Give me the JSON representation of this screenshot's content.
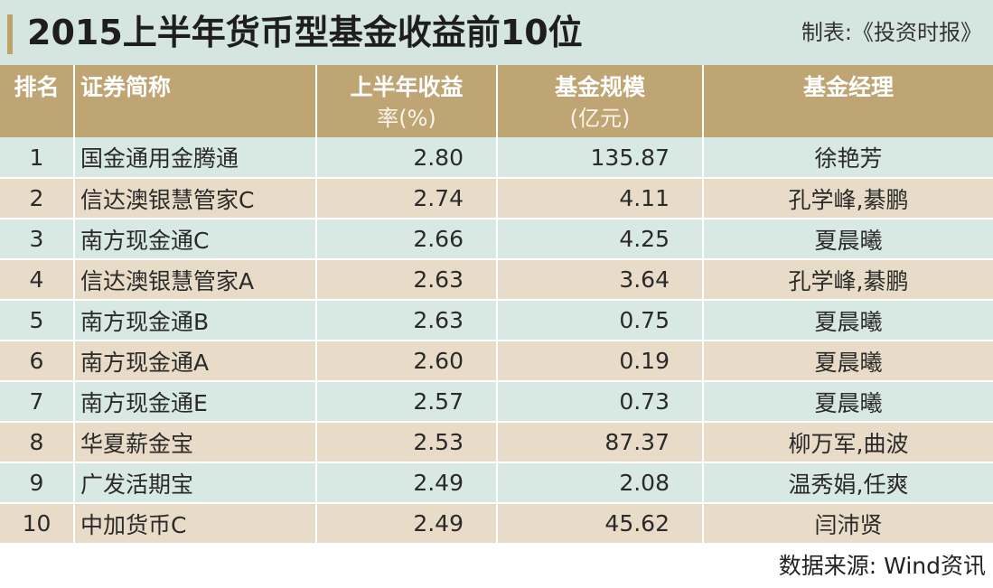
{
  "header": {
    "title": "2015上半年货币型基金收益前10位",
    "maker": "制表:《投资时报》"
  },
  "table": {
    "columns": {
      "rank": "排名",
      "name": "证券简称",
      "return_line1": "上半年收益",
      "return_line2": "率(%)",
      "size_line1": "基金规模",
      "size_line2": "(亿元)",
      "manager": "基金经理"
    },
    "rows": [
      {
        "rank": "1",
        "name": "国金通用金腾通",
        "return": "2.80",
        "size": "135.87",
        "manager": "徐艳芳"
      },
      {
        "rank": "2",
        "name": "信达澳银慧管家C",
        "return": "2.74",
        "size": "4.11",
        "manager": "孔学峰,綦鹏"
      },
      {
        "rank": "3",
        "name": "南方现金通C",
        "return": "2.66",
        "size": "4.25",
        "manager": "夏晨曦"
      },
      {
        "rank": "4",
        "name": "信达澳银慧管家A",
        "return": "2.63",
        "size": "3.64",
        "manager": "孔学峰,綦鹏"
      },
      {
        "rank": "5",
        "name": "南方现金通B",
        "return": "2.63",
        "size": "0.75",
        "manager": "夏晨曦"
      },
      {
        "rank": "6",
        "name": "南方现金通A",
        "return": "2.60",
        "size": "0.19",
        "manager": "夏晨曦"
      },
      {
        "rank": "7",
        "name": "南方现金通E",
        "return": "2.57",
        "size": "0.73",
        "manager": "夏晨曦"
      },
      {
        "rank": "8",
        "name": "华夏薪金宝",
        "return": "2.53",
        "size": "87.37",
        "manager": "柳万军,曲波"
      },
      {
        "rank": "9",
        "name": "广发活期宝",
        "return": "2.49",
        "size": "2.08",
        "manager": "温秀娟,任爽"
      },
      {
        "rank": "10",
        "name": "中加货币C",
        "return": "2.49",
        "size": "45.62",
        "manager": "闫沛贤"
      }
    ]
  },
  "footer": {
    "source": "数据来源: Wind资讯"
  },
  "colors": {
    "title_bg": "#d5e6e1",
    "header_bg": "#bfa574",
    "row_odd": "#d8e8e3",
    "row_even": "#e8dcc8"
  }
}
